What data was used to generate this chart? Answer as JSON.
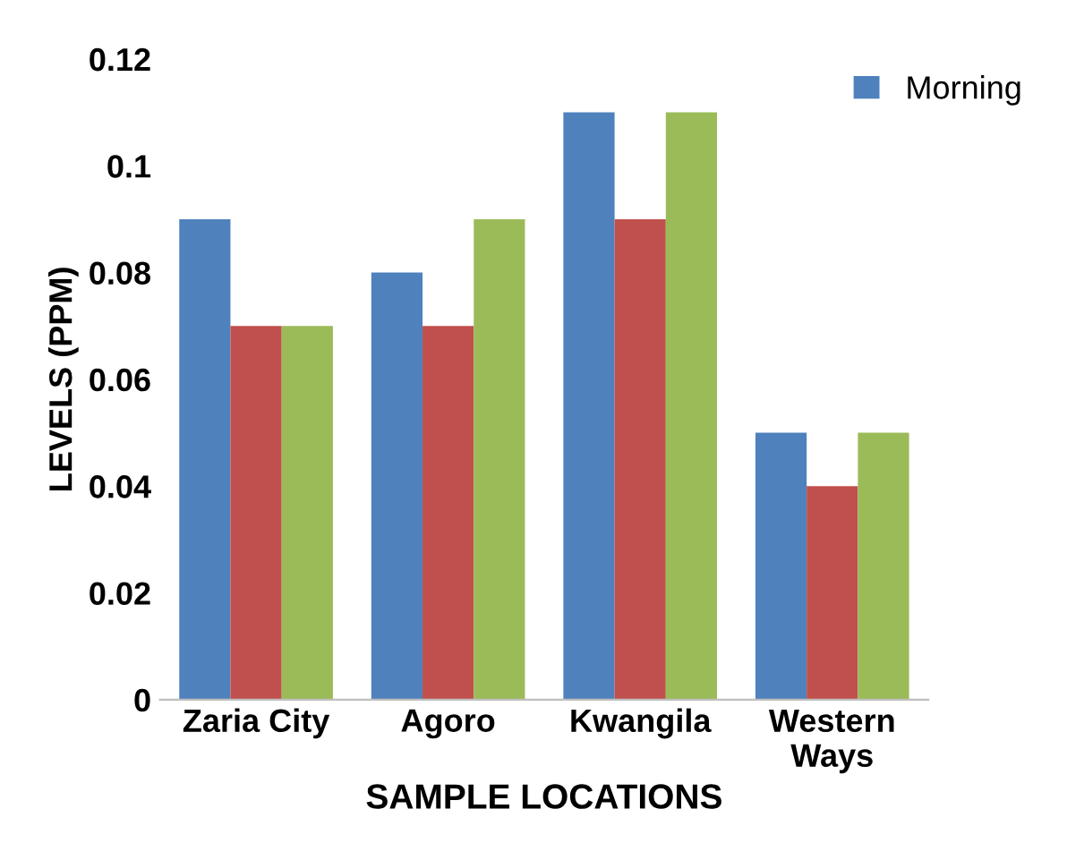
{
  "chart_data": {
    "type": "bar",
    "xlabel": "SAMPLE LOCATIONS",
    "ylabel": "LEVELS (PPM)",
    "categories": [
      "Zaria City",
      "Agoro",
      "Kwangila",
      "Western\nWays"
    ],
    "series": [
      {
        "name": "Morning",
        "color": "#4f81bd",
        "values": [
          0.09,
          0.08,
          0.11,
          0.05
        ]
      },
      {
        "color": "#c0504d",
        "values": [
          0.07,
          0.07,
          0.09,
          0.04
        ]
      },
      {
        "color": "#9bbb59",
        "values": [
          0.07,
          0.09,
          0.11,
          0.05
        ]
      }
    ],
    "ylim": [
      0,
      0.12
    ],
    "yticks": [
      0,
      0.02,
      0.04,
      0.06,
      0.08,
      0.1,
      0.12
    ],
    "grid": false,
    "legend": "top right"
  }
}
